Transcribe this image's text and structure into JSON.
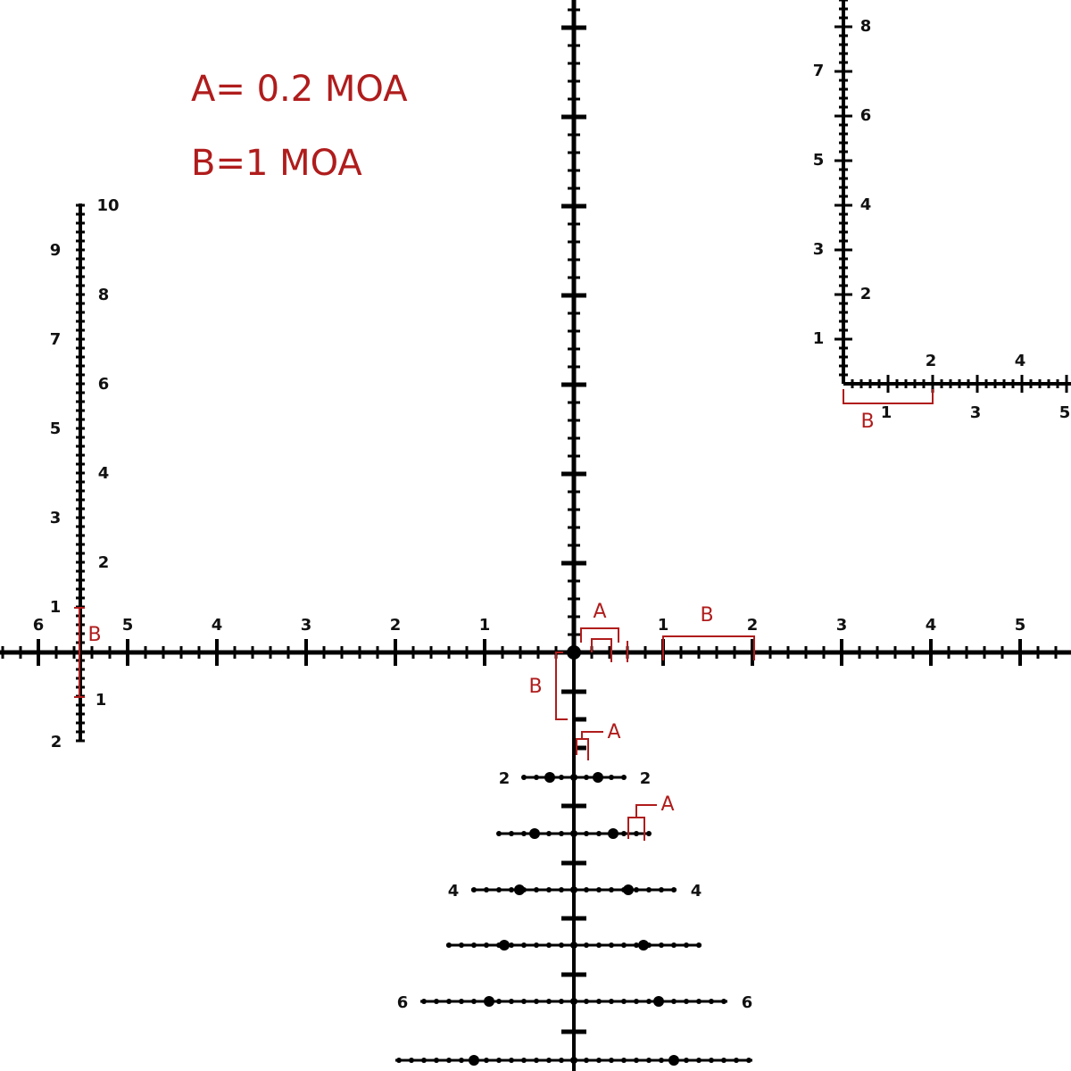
{
  "legend": {
    "a": "A= 0.2 MOA",
    "b": "B=1 MOA"
  },
  "main_reticle": {
    "horizontal_left_labels": [
      "1",
      "2",
      "3",
      "4",
      "5",
      "6"
    ],
    "horizontal_right_labels": [
      "1",
      "2",
      "3",
      "4",
      "5"
    ],
    "stadia_left_labels": [
      "2",
      "4",
      "6"
    ],
    "stadia_right_labels": [
      "2",
      "4",
      "6"
    ]
  },
  "left_ruler": {
    "labels": [
      "1",
      "2",
      "3",
      "4",
      "5",
      "6",
      "7",
      "8",
      "9",
      "10"
    ],
    "below_labels": [
      "1",
      "2"
    ]
  },
  "inset": {
    "vertical_labels": [
      "1",
      "2",
      "3",
      "4",
      "5",
      "6",
      "7",
      "8"
    ],
    "horizontal_top_labels": [
      "2",
      "4"
    ],
    "horizontal_bottom_labels": [
      "1",
      "3",
      "5"
    ]
  },
  "annotations": [
    "A",
    "B",
    "B",
    "A",
    "A",
    "B",
    "B"
  ]
}
